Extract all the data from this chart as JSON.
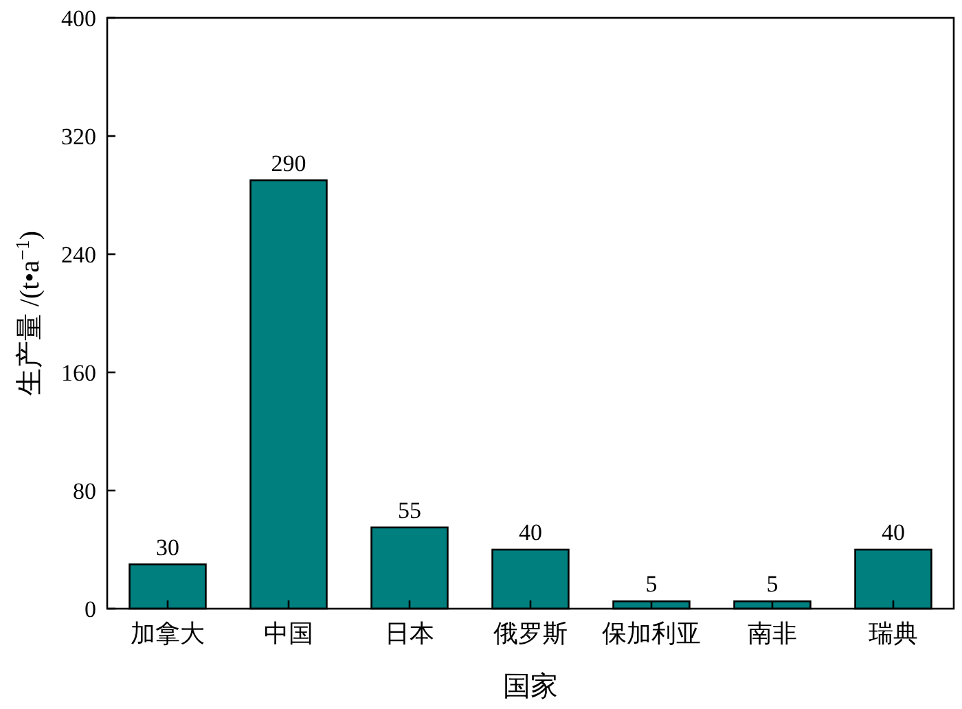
{
  "chart_data": {
    "type": "bar",
    "xlabel": "国家",
    "ylabel": "生产量 /(t•a$^{−1}$)",
    "categories": [
      "加拿大",
      "中国",
      "日本",
      "俄罗斯",
      "保加利亚",
      "南非",
      "瑞典"
    ],
    "values": [
      30,
      290,
      55,
      40,
      5,
      5,
      40
    ],
    "color": "#007f7f",
    "ylim": [
      0,
      400
    ],
    "yticks": [
      0,
      80,
      160,
      240,
      320,
      400
    ],
    "data_labels": true
  }
}
